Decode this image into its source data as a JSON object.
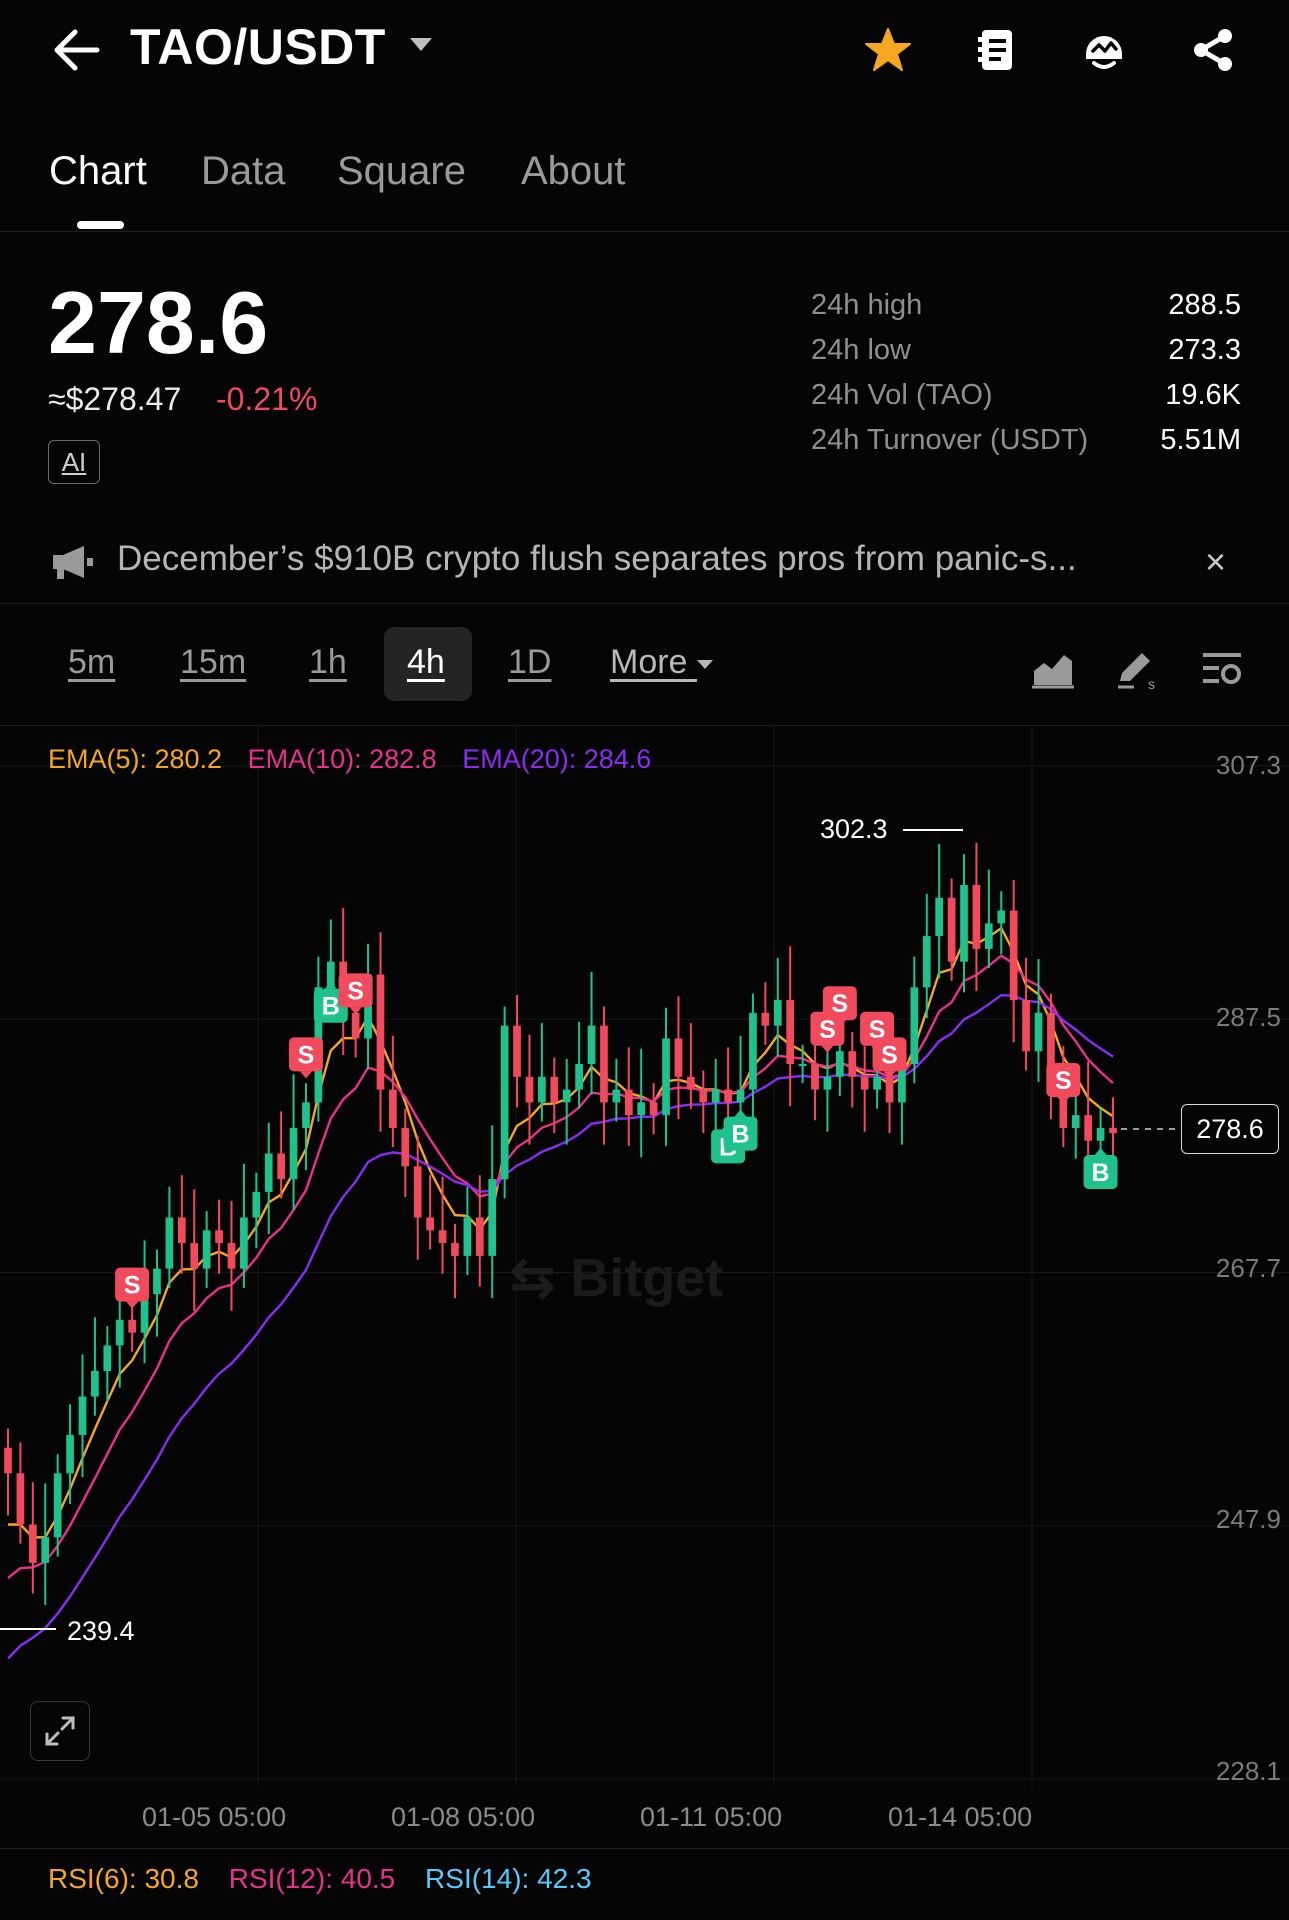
{
  "header": {
    "title": "TAO/USDT",
    "icons": [
      "back-arrow-icon",
      "caret-down-icon",
      "star-icon",
      "notes-icon",
      "bot-icon",
      "share-icon"
    ],
    "star_color": "#f5a623"
  },
  "tabs": [
    {
      "label": "Chart",
      "active": true
    },
    {
      "label": "Data",
      "active": false
    },
    {
      "label": "Square",
      "active": false
    },
    {
      "label": "About",
      "active": false
    }
  ],
  "price": {
    "last": "278.6",
    "usd": "≈$278.47",
    "change": "-0.21%",
    "ai_badge": "AI"
  },
  "stats": [
    {
      "label": "24h high",
      "value": "288.5"
    },
    {
      "label": "24h low",
      "value": "273.3"
    },
    {
      "label": "24h Vol (TAO)",
      "value": "19.6K"
    },
    {
      "label": "24h Turnover (USDT)",
      "value": "5.51M"
    }
  ],
  "news": {
    "text": "December’s $910B crypto flush separates pros from panic-s...",
    "close": "×"
  },
  "intervals": [
    {
      "label": "5m",
      "active": false
    },
    {
      "label": "15m",
      "active": false
    },
    {
      "label": "1h",
      "active": false
    },
    {
      "label": "4h",
      "active": true
    },
    {
      "label": "1D",
      "active": false
    },
    {
      "label": "More",
      "active": false
    }
  ],
  "tools": [
    "area-chart-icon",
    "drawing-pen-icon",
    "indicator-settings-icon"
  ],
  "indicators": {
    "ema": [
      {
        "label": "EMA(5): 280.2",
        "color": "#f5a623"
      },
      {
        "label": "EMA(10): 282.8",
        "color": "#e8318a"
      },
      {
        "label": "EMA(20): 284.6",
        "color": "#8b2cf5"
      }
    ],
    "rsi": [
      {
        "label": "RSI(6): 30.8",
        "color": "#f5a623"
      },
      {
        "label": "RSI(12): 40.5",
        "color": "#e8318a"
      },
      {
        "label": "RSI(14): 42.3",
        "color": "#5ac8fa"
      }
    ]
  },
  "colors": {
    "up": "#1fc28c",
    "down": "#f04a5c",
    "background": "#050505"
  },
  "chart_data": {
    "type": "candlestick",
    "pair": "TAO/USDT",
    "interval": "4h",
    "y_ticks": [
      "307.3",
      "287.5",
      "267.7",
      "247.9",
      "228.1"
    ],
    "ylim": [
      228.1,
      307.3
    ],
    "x_ticks": [
      "01-05 05:00",
      "01-08 05:00",
      "01-11 05:00",
      "01-14 05:00"
    ],
    "high_label": "302.3",
    "low_label": "239.4",
    "last_price": "278.6",
    "markers": [
      "S",
      "B"
    ],
    "close_series": [
      252,
      248,
      245,
      247,
      252,
      255,
      258,
      260,
      262,
      264,
      263,
      266,
      268,
      272,
      270,
      268,
      271,
      270,
      268,
      272,
      274,
      277,
      275,
      279,
      281,
      290,
      292,
      288,
      286,
      291,
      282,
      279,
      276,
      272,
      271,
      270,
      269,
      272,
      269,
      275,
      287,
      283,
      281,
      283,
      281,
      282,
      284,
      287,
      281,
      282,
      280,
      281,
      280,
      286,
      283,
      282,
      281,
      282,
      281,
      282,
      288,
      287,
      289,
      284,
      284,
      282,
      283,
      285,
      283,
      282,
      283,
      281,
      284,
      290,
      294,
      297,
      292,
      298,
      293,
      295,
      296,
      289,
      285,
      288,
      283,
      279,
      280,
      278,
      279,
      278.6
    ]
  }
}
